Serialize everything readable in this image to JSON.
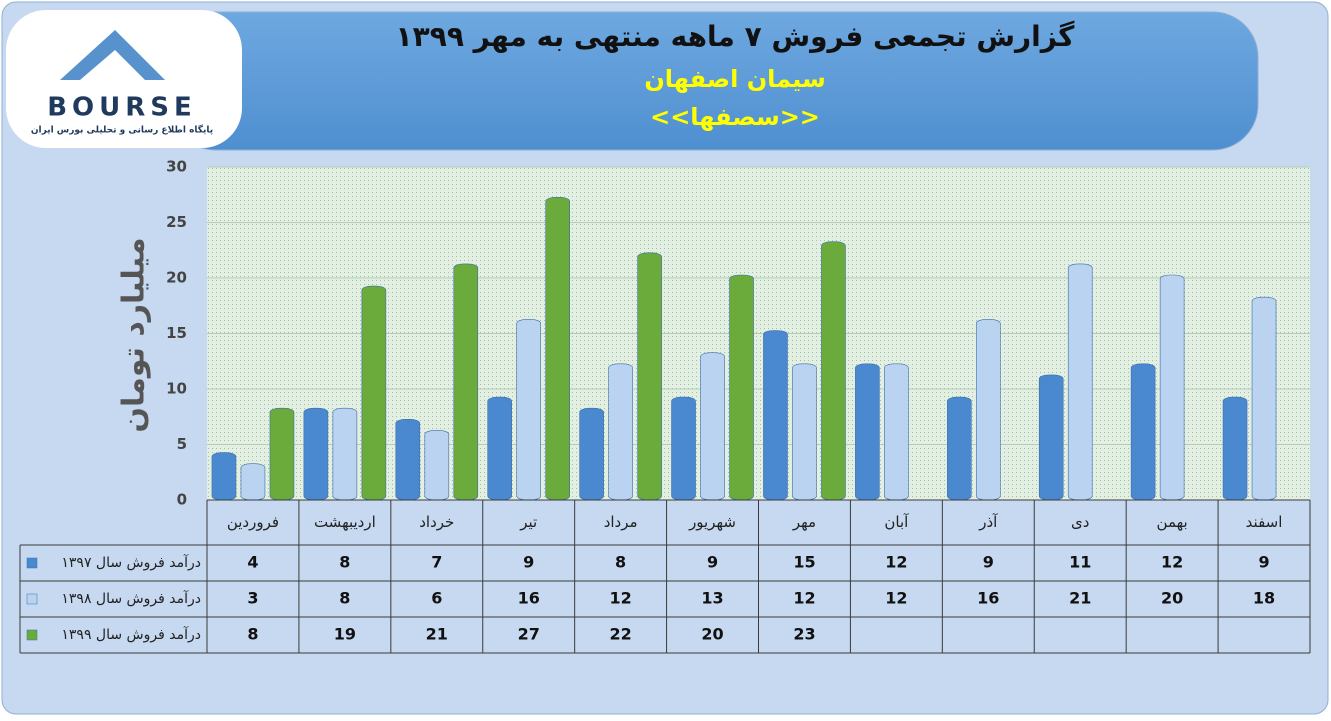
{
  "logo": {
    "text": "BOURSE",
    "tagline": "پایگاه اطلاع رسانی و تحلیلی بورس ایران"
  },
  "chart_data": {
    "type": "bar",
    "title": "گزارش تجمعی فروش ۷ ماهه منتهی به مهر ۱۳۹۹",
    "subtitle": "سیمان اصفهان",
    "symbol": "<<سصفها>>",
    "y_label": "میلیارد تومان",
    "categories": [
      "فروردین",
      "اردیبهشت",
      "خرداد",
      "تیر",
      "مرداد",
      "شهریور",
      "مهر",
      "آبان",
      "آذر",
      "دی",
      "بهمن",
      "اسفند"
    ],
    "series": [
      {
        "name": "درآمد فروش سال ۱۳۹۷",
        "color": "#4a89d0",
        "values": [
          4,
          8,
          7,
          9,
          8,
          9,
          15,
          12,
          9,
          11,
          12,
          9
        ]
      },
      {
        "name": "درآمد فروش سال ۱۳۹۸",
        "color": "#b9d3f1",
        "values": [
          3,
          8,
          6,
          16,
          12,
          13,
          12,
          12,
          16,
          21,
          20,
          18
        ]
      },
      {
        "name": "درآمد فروش سال ۱۳۹۹",
        "color": "#6aab3b",
        "values": [
          8,
          19,
          21,
          27,
          22,
          20,
          23,
          null,
          null,
          null,
          null,
          null
        ]
      }
    ],
    "ylim": [
      0,
      30
    ],
    "yticks": [
      0,
      5,
      10,
      15,
      20,
      25,
      30
    ],
    "grid": true,
    "data_table": true
  }
}
